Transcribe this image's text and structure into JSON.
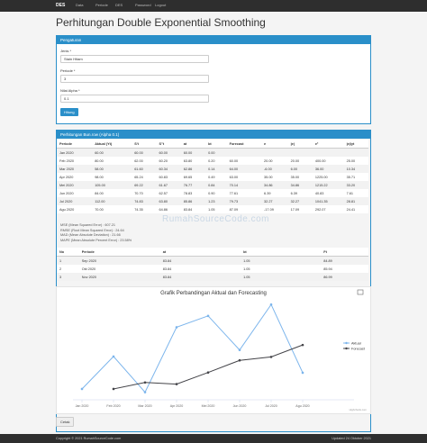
{
  "navbar": {
    "brand": "DES",
    "menu": [
      "Data",
      "Periode",
      "DES",
      "Password",
      "Logout"
    ]
  },
  "page_title": "Perhitungan Double Exponential Smoothing",
  "settings": {
    "title": "Pengaturan",
    "fields": [
      {
        "label": "Jenis *",
        "value": "Stain Hitam"
      },
      {
        "label": "Periode *",
        "value": "3"
      },
      {
        "label": "Nilai Alpha *",
        "value": "0.1"
      }
    ],
    "button": "Hitung"
  },
  "calc": {
    "title": "Perhitungan Bun.row (Alpha 0.1)",
    "table": {
      "columns": [
        "Periode",
        "Aktual (Yt)",
        "S't",
        "S''t",
        "at",
        "bt",
        "Forecast",
        "e",
        "|e|",
        "e²",
        "|e|/yt"
      ],
      "rows": [
        [
          "Jan 2020",
          "60.00",
          "60.00",
          "60.00",
          "60.00",
          "0.00",
          null,
          null,
          null,
          null,
          null
        ],
        [
          "Feb 2020",
          "80.00",
          "62.00",
          "60.20",
          "63.80",
          "0.20",
          "60.00",
          "20.00",
          "20.00",
          "400.00",
          "25.00"
        ],
        [
          "Mar 2020",
          "58.00",
          "61.60",
          "60.34",
          "62.86",
          "0.14",
          "64.00",
          "-6.00",
          "6.00",
          "36.00",
          "10.34"
        ],
        [
          "Apr 2020",
          "98.00",
          "65.24",
          "60.83",
          "69.65",
          "0.49",
          "63.00",
          "35.00",
          "35.00",
          "1225.00",
          "35.71"
        ],
        [
          "Mei 2020",
          "105.00",
          "69.22",
          "61.67",
          "76.77",
          "0.84",
          "70.14",
          "34.86",
          "34.86",
          "1215.22",
          "33.20"
        ],
        [
          "Jun 2020",
          "84.00",
          "70.70",
          "62.57",
          "78.83",
          "0.90",
          "77.61",
          "6.39",
          "6.39",
          "40.83",
          "7.61"
        ],
        [
          "Jul 2020",
          "112.00",
          "74.83",
          "63.80",
          "85.86",
          "1.23",
          "79.73",
          "32.27",
          "32.27",
          "1041.35",
          "28.81"
        ],
        [
          "Agu 2020",
          "70.00",
          "74.35",
          "64.86",
          "83.84",
          "1.05",
          "87.09",
          "-17.09",
          "17.09",
          "292.07",
          "24.41"
        ]
      ]
    },
    "errors": [
      "MSE (Mean Squared Error) : 607.21",
      "RMSE (Root Mean Squared Error) : 24.64",
      "MAD (Mean Absolute Deviation) : 21.66",
      "MAPE (Mean Absolute Percent Error) : 23.58%"
    ],
    "forecast_table": {
      "columns": [
        "No",
        "Periode",
        "at",
        "bt",
        "Ft"
      ],
      "rows": [
        [
          "1",
          "Sep 2020",
          "83.84",
          "1.05",
          "84.89"
        ],
        [
          "2",
          "Okt 2020",
          "83.84",
          "1.05",
          "85.94"
        ],
        [
          "3",
          "Nov 2020",
          "83.84",
          "1.05",
          "86.99"
        ]
      ]
    }
  },
  "watermark": "RumahSourceCode.com",
  "chart_data": {
    "type": "line",
    "title": "Grafik Perbandingan Aktual dan Forecasting",
    "categories": [
      "Jan 2020",
      "Feb 2020",
      "Mar 2020",
      "Apr 2020",
      "Mei 2020",
      "Jun 2020",
      "Jul 2020",
      "Agu 2020"
    ],
    "series": [
      {
        "name": "Aktual",
        "color": "#7cb5ec",
        "values": [
          60,
          80,
          58,
          98,
          105,
          84,
          112,
          70
        ]
      },
      {
        "name": "Forecast",
        "color": "#434348",
        "values": [
          null,
          60,
          64,
          63,
          70.14,
          77.61,
          79.73,
          87.09
        ]
      }
    ],
    "ylim": [
      55,
      116
    ],
    "legend": "right",
    "credits": "Highcharts.com"
  },
  "print_button": "Cetak",
  "footer": {
    "left": "Copyright © 2021 RumahSourceCode.com",
    "right": "Updated 24 Oktober 2021"
  }
}
